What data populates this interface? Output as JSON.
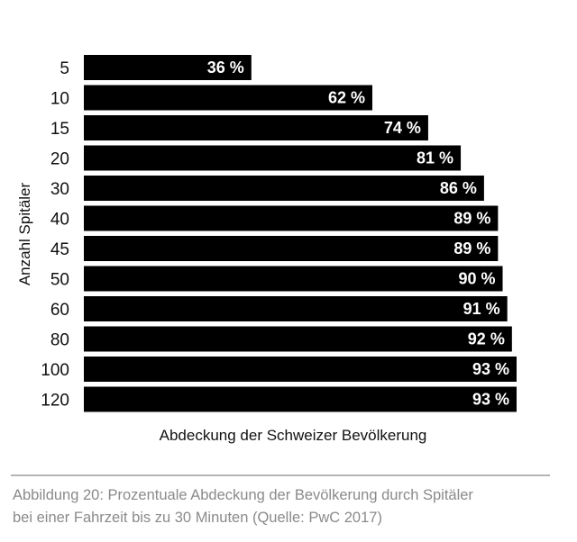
{
  "chart_data": {
    "type": "bar",
    "orientation": "horizontal",
    "categories": [
      "5",
      "10",
      "15",
      "20",
      "30",
      "40",
      "45",
      "50",
      "60",
      "80",
      "100",
      "120"
    ],
    "values": [
      36,
      62,
      74,
      81,
      86,
      89,
      89,
      90,
      91,
      92,
      93,
      93
    ],
    "value_labels": [
      "36 %",
      "62 %",
      "74 %",
      "81 %",
      "86 %",
      "89 %",
      "89 %",
      "90 %",
      "91 %",
      "92 %",
      "93 %",
      "93 %"
    ],
    "title": "",
    "xlabel": "Abdeckung der Schweizer Bevölkerung",
    "ylabel": "Anzahl Spitäler",
    "xlim": [
      0,
      93
    ],
    "bar_color": "#000000",
    "label_color": "#ffffff"
  },
  "caption": {
    "line1": "Abbildung 20: Prozentuale Abdeckung der Bevölkerung durch Spitäler",
    "line2": "bei einer Fahrzeit bis zu 30 Minuten (Quelle: PwC 2017)"
  },
  "colors": {
    "caption_text": "#8a8a8a",
    "divider": "#b5b5b5"
  }
}
